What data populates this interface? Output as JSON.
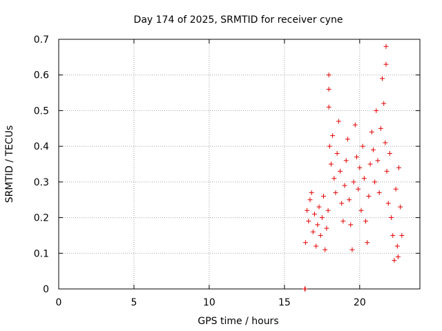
{
  "chart_data": {
    "type": "scatter",
    "title": "Day 174 of 2025, SRMTID for receiver cyne",
    "xlabel": "GPS time / hours",
    "ylabel": "SRMTID / TECUs",
    "xlim": [
      0,
      24
    ],
    "ylim": [
      0,
      0.7
    ],
    "xticks": [
      0,
      5,
      10,
      15,
      20
    ],
    "yticks": [
      0,
      0.1,
      0.2,
      0.3,
      0.4,
      0.5,
      0.6,
      0.7
    ],
    "xtick_labels": [
      "0",
      "5",
      "10",
      "15",
      "20"
    ],
    "ytick_labels": [
      "0",
      "0.1",
      "0.2",
      "0.3",
      "0.4",
      "0.5",
      "0.6",
      "0.7"
    ],
    "grid": true,
    "marker": "+",
    "color": "#e00000",
    "outlier_points": [
      {
        "x": 16.35,
        "y": 0.0
      },
      {
        "x": 16.38,
        "y": 0.0
      }
    ],
    "series": [
      {
        "name": "SRMTID",
        "points": [
          {
            "x": 16.4,
            "y": 0.13
          },
          {
            "x": 16.5,
            "y": 0.22
          },
          {
            "x": 16.6,
            "y": 0.19
          },
          {
            "x": 16.7,
            "y": 0.25
          },
          {
            "x": 16.8,
            "y": 0.27
          },
          {
            "x": 16.9,
            "y": 0.16
          },
          {
            "x": 17.0,
            "y": 0.21
          },
          {
            "x": 17.1,
            "y": 0.12
          },
          {
            "x": 17.2,
            "y": 0.18
          },
          {
            "x": 17.3,
            "y": 0.23
          },
          {
            "x": 17.4,
            "y": 0.15
          },
          {
            "x": 17.5,
            "y": 0.2
          },
          {
            "x": 17.6,
            "y": 0.26
          },
          {
            "x": 17.7,
            "y": 0.11
          },
          {
            "x": 17.8,
            "y": 0.17
          },
          {
            "x": 17.9,
            "y": 0.22
          },
          {
            "x": 17.95,
            "y": 0.6
          },
          {
            "x": 17.95,
            "y": 0.56
          },
          {
            "x": 17.95,
            "y": 0.51
          },
          {
            "x": 18.0,
            "y": 0.4
          },
          {
            "x": 18.1,
            "y": 0.35
          },
          {
            "x": 18.2,
            "y": 0.43
          },
          {
            "x": 18.3,
            "y": 0.31
          },
          {
            "x": 18.4,
            "y": 0.27
          },
          {
            "x": 18.5,
            "y": 0.38
          },
          {
            "x": 18.6,
            "y": 0.47
          },
          {
            "x": 18.7,
            "y": 0.33
          },
          {
            "x": 18.8,
            "y": 0.24
          },
          {
            "x": 18.9,
            "y": 0.19
          },
          {
            "x": 19.0,
            "y": 0.29
          },
          {
            "x": 19.1,
            "y": 0.36
          },
          {
            "x": 19.2,
            "y": 0.42
          },
          {
            "x": 19.3,
            "y": 0.25
          },
          {
            "x": 19.4,
            "y": 0.18
          },
          {
            "x": 19.5,
            "y": 0.11
          },
          {
            "x": 19.6,
            "y": 0.3
          },
          {
            "x": 19.7,
            "y": 0.46
          },
          {
            "x": 19.8,
            "y": 0.37
          },
          {
            "x": 19.9,
            "y": 0.28
          },
          {
            "x": 20.0,
            "y": 0.34
          },
          {
            "x": 20.1,
            "y": 0.22
          },
          {
            "x": 20.2,
            "y": 0.4
          },
          {
            "x": 20.3,
            "y": 0.31
          },
          {
            "x": 20.4,
            "y": 0.19
          },
          {
            "x": 20.5,
            "y": 0.13
          },
          {
            "x": 20.6,
            "y": 0.26
          },
          {
            "x": 20.7,
            "y": 0.35
          },
          {
            "x": 20.8,
            "y": 0.44
          },
          {
            "x": 20.9,
            "y": 0.39
          },
          {
            "x": 21.0,
            "y": 0.3
          },
          {
            "x": 21.1,
            "y": 0.5
          },
          {
            "x": 21.2,
            "y": 0.36
          },
          {
            "x": 21.3,
            "y": 0.27
          },
          {
            "x": 21.4,
            "y": 0.45
          },
          {
            "x": 21.5,
            "y": 0.59
          },
          {
            "x": 21.6,
            "y": 0.52
          },
          {
            "x": 21.7,
            "y": 0.41
          },
          {
            "x": 21.75,
            "y": 0.68
          },
          {
            "x": 21.75,
            "y": 0.63
          },
          {
            "x": 21.8,
            "y": 0.33
          },
          {
            "x": 21.9,
            "y": 0.24
          },
          {
            "x": 22.0,
            "y": 0.38
          },
          {
            "x": 22.1,
            "y": 0.2
          },
          {
            "x": 22.2,
            "y": 0.15
          },
          {
            "x": 22.3,
            "y": 0.08
          },
          {
            "x": 22.4,
            "y": 0.28
          },
          {
            "x": 22.5,
            "y": 0.12
          },
          {
            "x": 22.55,
            "y": 0.09
          },
          {
            "x": 22.6,
            "y": 0.34
          },
          {
            "x": 22.7,
            "y": 0.23
          },
          {
            "x": 22.8,
            "y": 0.15
          }
        ]
      }
    ]
  }
}
